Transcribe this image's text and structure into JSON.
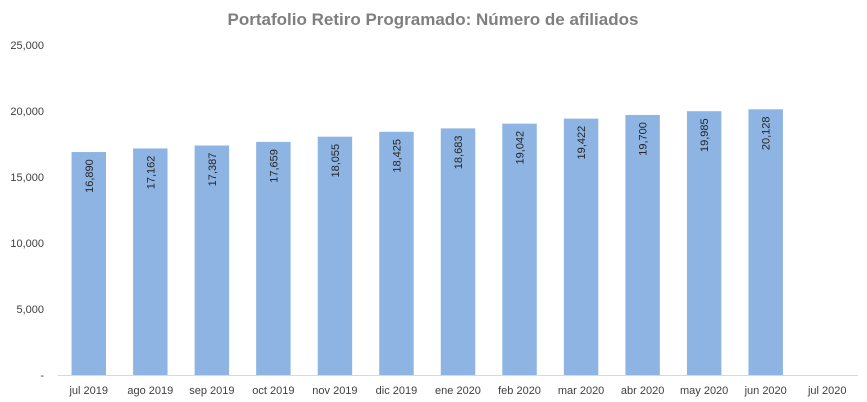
{
  "chart_data": {
    "type": "bar",
    "title": "Portafolio Retiro Programado: Número de afiliados",
    "xlabel": "",
    "ylabel": "",
    "categories": [
      "jul 2019",
      "ago 2019",
      "sep 2019",
      "oct 2019",
      "nov 2019",
      "dic 2019",
      "ene 2020",
      "feb 2020",
      "mar 2020",
      "abr 2020",
      "may 2020",
      "jun 2020",
      "jul 2020"
    ],
    "values": [
      16890,
      17162,
      17387,
      17659,
      18055,
      18425,
      18683,
      19042,
      19422,
      19700,
      19985,
      20128,
      null
    ],
    "value_labels": [
      "16,890",
      "17,162",
      "17,387",
      "17,659",
      "18,055",
      "18,425",
      "18,683",
      "19,042",
      "19,422",
      "19,700",
      "19,985",
      "20,128",
      ""
    ],
    "ylim": [
      0,
      25000
    ],
    "yticks": [
      0,
      5000,
      10000,
      15000,
      20000,
      25000
    ],
    "ytick_labels": [
      "-",
      "5,000",
      "10,000",
      "15,000",
      "20,000",
      "25,000"
    ],
    "grid": false,
    "legend": "none",
    "bar_color": "#8db4e2",
    "title_color": "#7f7f7f"
  }
}
